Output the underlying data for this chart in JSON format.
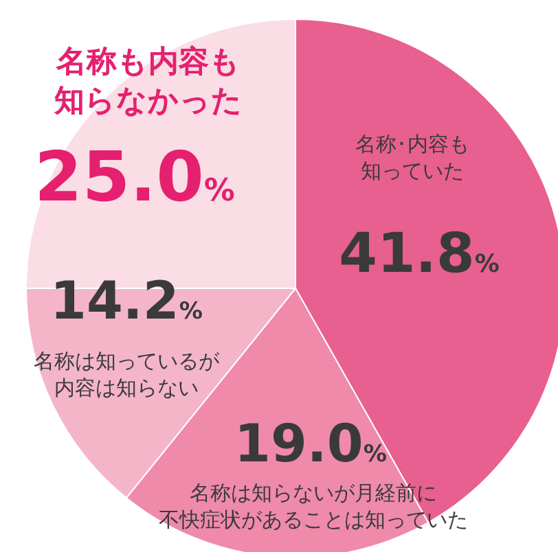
{
  "chart_data": {
    "type": "pie",
    "categories": [
      "名称･内容も知っていた",
      "名称は知らないが月経前に不快症状があることは知っていた",
      "名称は知っているが内容は知らない",
      "名称も内容も知らなかった"
    ],
    "values": [
      41.8,
      19.0,
      14.2,
      25.0
    ],
    "value_labels": [
      "41.8%",
      "19.0%",
      "14.2%",
      "25.0%"
    ],
    "colors": [
      "#e8608f",
      "#ef8aab",
      "#f4b5c9",
      "#fadde5"
    ]
  }
}
